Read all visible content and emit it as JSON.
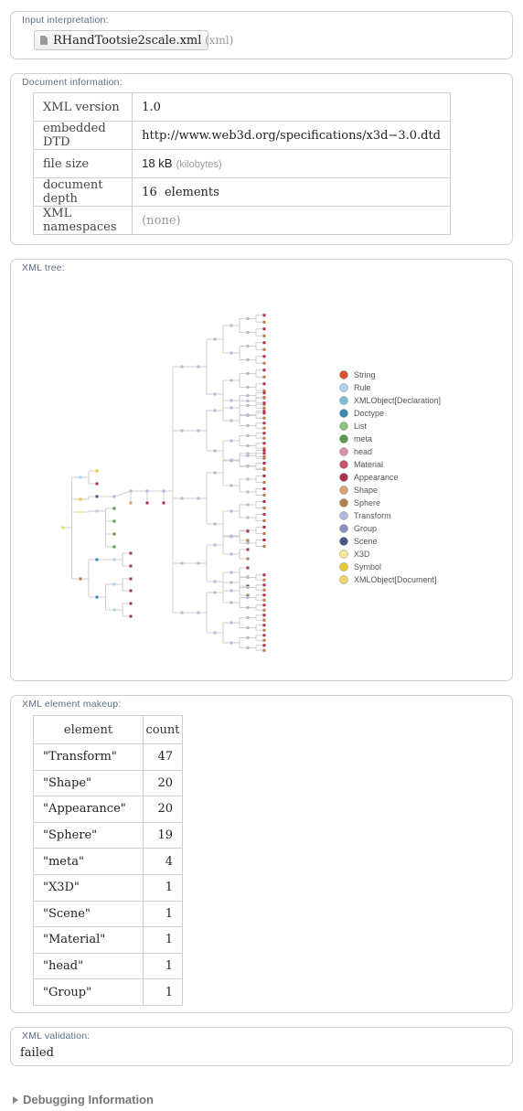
{
  "input": {
    "title": "Input interpretation:",
    "file": "RHandTootsie2scale.xml",
    "hint": "(xml)"
  },
  "docinfo": {
    "title": "Document information:",
    "rows": [
      {
        "key": "XML version",
        "value": "1.0",
        "unit": ""
      },
      {
        "key": "embedded DTD",
        "value": "http://www.web3d.org/specifications/x3d−3.0.dtd",
        "unit": ""
      },
      {
        "key": "file size",
        "value": "18 kB",
        "unit": "(kilobytes)"
      },
      {
        "key": "document depth",
        "value": "16  elements",
        "unit": ""
      },
      {
        "key": "XML namespaces",
        "value": "(none)",
        "unit": ""
      }
    ]
  },
  "tree": {
    "title": "XML tree:",
    "legend": [
      {
        "label": "String",
        "color": "#d9532c"
      },
      {
        "label": "Rule",
        "color": "#aed4ee"
      },
      {
        "label": "XMLObject[Declaration]",
        "color": "#80bcd4"
      },
      {
        "label": "Doctype",
        "color": "#3d87ad"
      },
      {
        "label": "List",
        "color": "#8fc07a"
      },
      {
        "label": "meta",
        "color": "#5a9a4a"
      },
      {
        "label": "head",
        "color": "#d690a8"
      },
      {
        "label": "Material",
        "color": "#c85070"
      },
      {
        "label": "Appearance",
        "color": "#a8324c"
      },
      {
        "label": "Shape",
        "color": "#d8a070"
      },
      {
        "label": "Sphere",
        "color": "#b57c50"
      },
      {
        "label": "Transform",
        "color": "#b4b8e0"
      },
      {
        "label": "Group",
        "color": "#8d8fbf"
      },
      {
        "label": "Scene",
        "color": "#4f5483"
      },
      {
        "label": "X3D",
        "color": "#f0ea96"
      },
      {
        "label": "Symbol",
        "color": "#e4c82c"
      },
      {
        "label": "XMLObject[Document]",
        "color": "#ecd86a"
      }
    ]
  },
  "makeup": {
    "title": "XML element makeup:",
    "headers": [
      "element",
      "count"
    ],
    "rows": [
      {
        "element": "\"Transform\"",
        "count": "47"
      },
      {
        "element": "\"Shape\"",
        "count": "20"
      },
      {
        "element": "\"Appearance\"",
        "count": "20"
      },
      {
        "element": "\"Sphere\"",
        "count": "19"
      },
      {
        "element": "\"meta\"",
        "count": "4"
      },
      {
        "element": "\"X3D\"",
        "count": "1"
      },
      {
        "element": "\"Scene\"",
        "count": "1"
      },
      {
        "element": "\"Material\"",
        "count": "1"
      },
      {
        "element": "\"head\"",
        "count": "1"
      },
      {
        "element": "\"Group\"",
        "count": "1"
      }
    ]
  },
  "validation": {
    "title": "XML validation:",
    "value": "failed"
  },
  "debug": {
    "label": "Debugging Information"
  }
}
